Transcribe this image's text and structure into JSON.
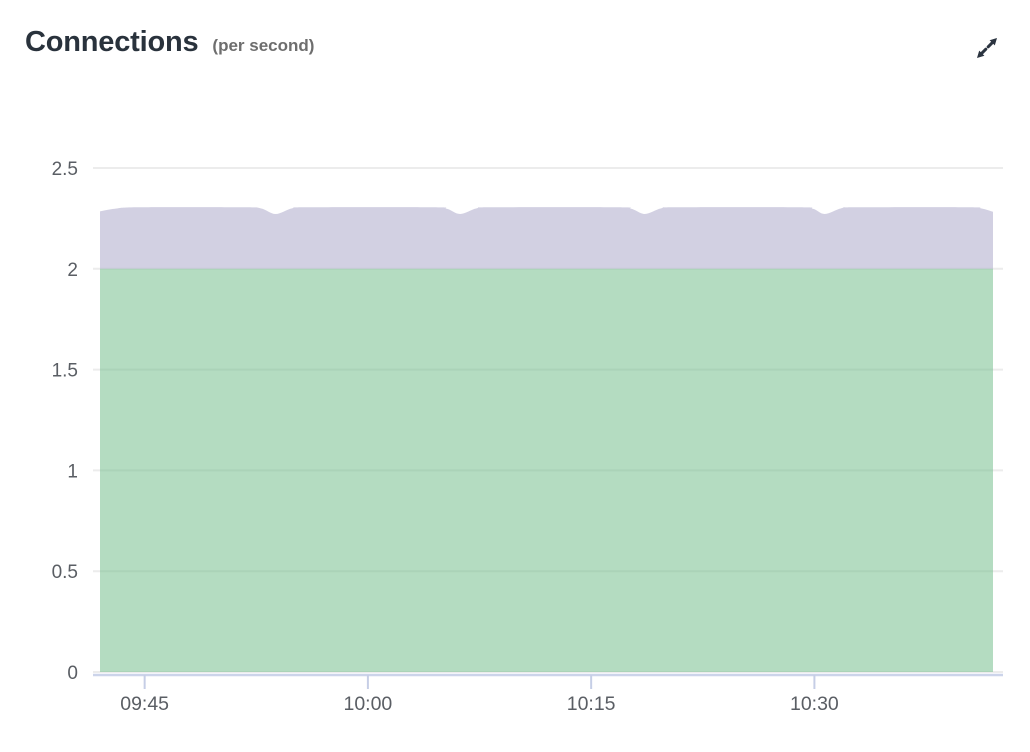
{
  "header": {
    "title": "Connections",
    "subtitle": "(per second)"
  },
  "toolbar": {
    "expand_icon": "expand-diagonal-arrows"
  },
  "colors": {
    "title_text": "#29323c",
    "subtitle_text": "#6e6e6e",
    "icon": "#2b3440",
    "gridline": "#ececec",
    "axis_line": "#ccd4ea",
    "tick_mark": "#c6cee6",
    "axis_label": "#5a5e64",
    "series_green_base": "#69b983",
    "series_purple_base": "#a5a1c5",
    "fill_opacity": 0.5
  },
  "chart_data": {
    "type": "area",
    "stacked": true,
    "title": "Connections (per second)",
    "legend": false,
    "grid": true,
    "x_axis": {
      "unit": "time",
      "visible_range_minutes": [
        0,
        60
      ],
      "approx_start_time": "09:42",
      "approx_end_time": "10:42",
      "tick_labels": [
        "09:45",
        "10:00",
        "10:15",
        "10:30"
      ],
      "tick_minutes": [
        3,
        18,
        33,
        48
      ]
    },
    "y_axis": {
      "range": [
        0,
        2.5
      ],
      "tick_labels": [
        "0",
        "0.5",
        "1",
        "1.5",
        "2",
        "2.5"
      ],
      "tick_values": [
        0,
        0.5,
        1,
        1.5,
        2,
        2.5
      ]
    },
    "series": [
      {
        "name": "series-1-green",
        "color": "#69b983",
        "points": [
          [
            0,
            2.0
          ],
          [
            60,
            2.0
          ]
        ]
      },
      {
        "name": "series-2-purple",
        "color": "#a5a1c5",
        "points": [
          [
            0,
            0.285
          ],
          [
            1,
            0.298
          ],
          [
            2.5,
            0.305
          ],
          [
            9.5,
            0.305
          ],
          [
            10.8,
            0.3
          ],
          [
            11.8,
            0.272
          ],
          [
            12.9,
            0.3
          ],
          [
            14,
            0.305
          ],
          [
            22.3,
            0.305
          ],
          [
            23.3,
            0.298
          ],
          [
            24.2,
            0.272
          ],
          [
            25.3,
            0.3
          ],
          [
            26.4,
            0.305
          ],
          [
            34.7,
            0.305
          ],
          [
            35.7,
            0.298
          ],
          [
            36.6,
            0.272
          ],
          [
            37.7,
            0.3
          ],
          [
            38.8,
            0.305
          ],
          [
            46.9,
            0.305
          ],
          [
            47.9,
            0.298
          ],
          [
            48.7,
            0.272
          ],
          [
            49.8,
            0.3
          ],
          [
            50.9,
            0.305
          ],
          [
            58.3,
            0.305
          ],
          [
            59.2,
            0.3
          ],
          [
            60,
            0.283
          ]
        ]
      }
    ]
  }
}
